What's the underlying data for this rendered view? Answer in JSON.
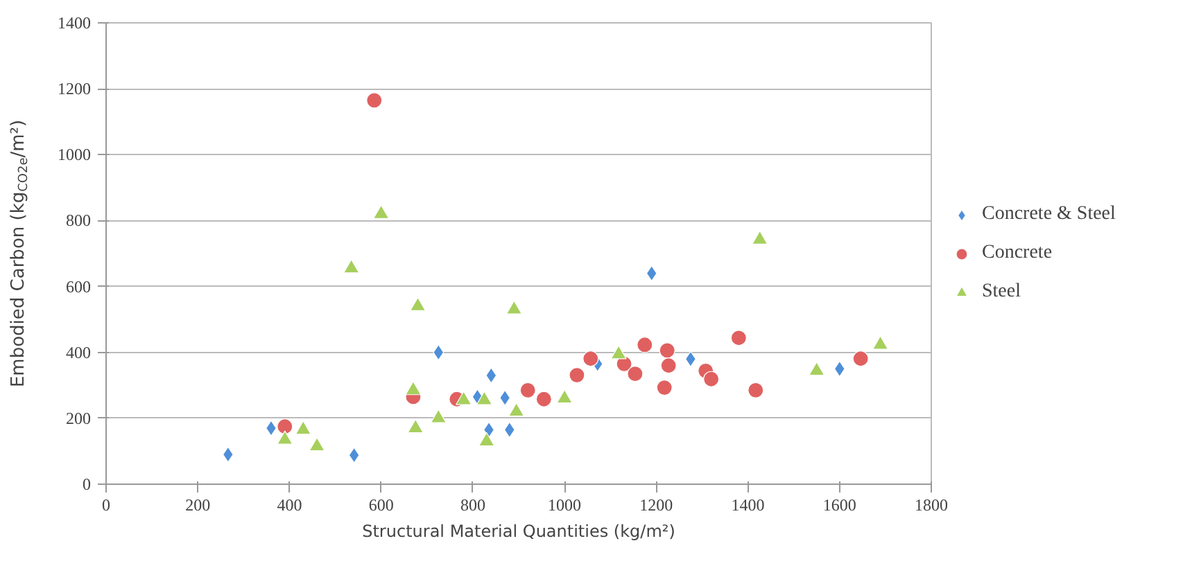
{
  "chart_data": {
    "type": "scatter",
    "xlabel": "Structural Material Quantities (kg/m²)",
    "ylabel": "Embodied Carbon (kg$_{CO2e}$/m²)",
    "xlim": [
      0,
      1800
    ],
    "xticks": [
      0,
      200,
      400,
      600,
      800,
      1000,
      1200,
      1400,
      1600,
      1800
    ],
    "ylim": [
      0,
      1400
    ],
    "yticks": [
      0,
      200,
      400,
      600,
      800,
      1000,
      1200,
      1400
    ],
    "grid": "y",
    "legend": "right",
    "series": [
      {
        "name": "Concrete & Steel",
        "color": "#4f8fd9",
        "marker": "diamond",
        "x": [
          266,
          360,
          541,
          725,
          840,
          810,
          870,
          835,
          880,
          1072,
          1190,
          1275,
          1600
        ],
        "values": [
          90,
          170,
          88,
          400,
          330,
          265,
          262,
          165,
          165,
          365,
          640,
          380,
          350
        ]
      },
      {
        "name": "Concrete",
        "color": "#e06060",
        "marker": "circle",
        "x": [
          390,
          585,
          670,
          765,
          920,
          955,
          1027,
          1057,
          1130,
          1154,
          1175,
          1224,
          1227,
          1218,
          1308,
          1320,
          1380,
          1417,
          1646
        ],
        "values": [
          175,
          1165,
          265,
          258,
          285,
          258,
          331,
          381,
          365,
          335,
          423,
          406,
          360,
          293,
          344,
          319,
          444,
          285,
          381
        ]
      },
      {
        "name": "Steel",
        "color": "#a6cf5c",
        "marker": "triangle",
        "x": [
          390,
          430,
          460,
          535,
          600,
          670,
          680,
          675,
          725,
          780,
          825,
          830,
          890,
          895,
          1000,
          1118,
          1426,
          1550,
          1689
        ],
        "values": [
          135,
          165,
          115,
          655,
          820,
          285,
          540,
          170,
          200,
          255,
          255,
          130,
          530,
          220,
          260,
          394,
          742,
          344,
          423
        ]
      }
    ]
  }
}
